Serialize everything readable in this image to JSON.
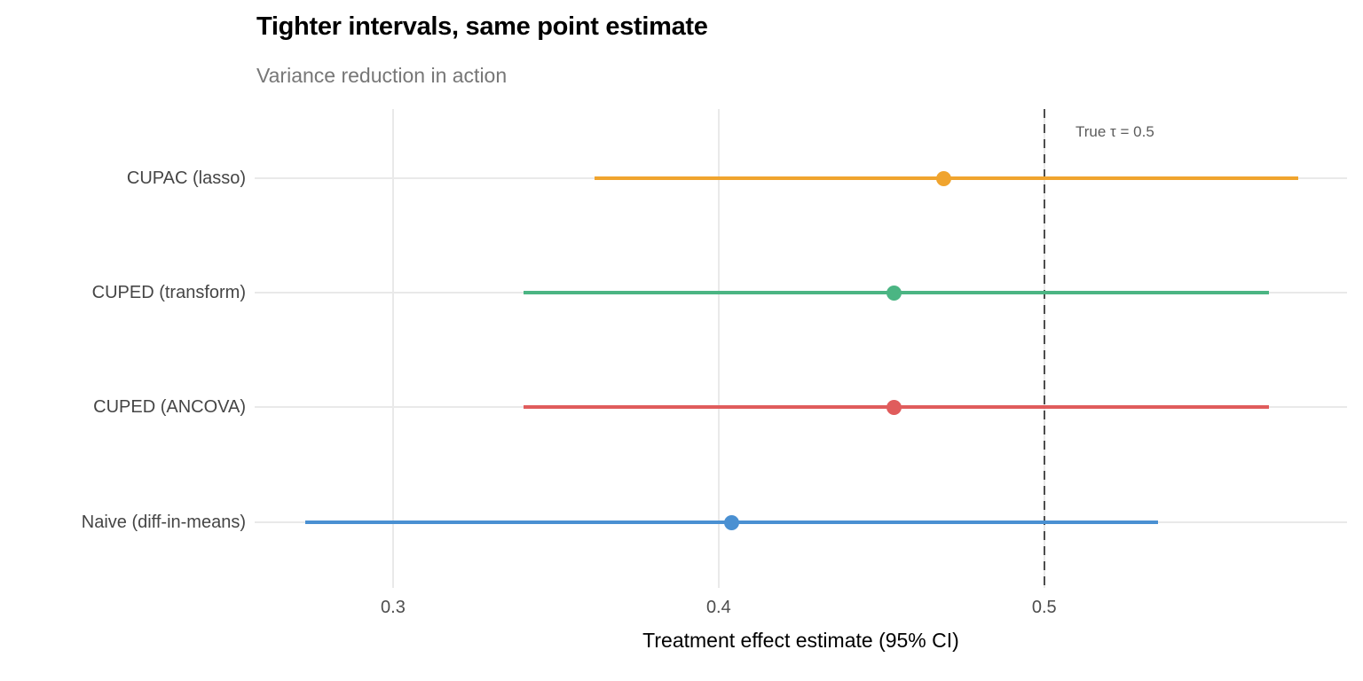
{
  "header": {
    "title": "Tighter intervals, same point estimate",
    "subtitle": "Variance reduction in action"
  },
  "chart_data": {
    "type": "scatter",
    "subtype": "horizontal-dot-ci-forest-plot",
    "title": "Tighter intervals, same point estimate",
    "subtitle": "Variance reduction in action",
    "xlabel": "Treatment effect estimate (95% CI)",
    "ylabel": "",
    "categories": [
      "CUPAC (lasso)",
      "CUPED (transform)",
      "CUPED (ANCOVA)",
      "Naive (diff-in-means)"
    ],
    "series": [
      {
        "name": "CUPAC (lasso)",
        "estimate": 0.469,
        "ci_low": 0.362,
        "ci_high": 0.578,
        "color": "#F0A42E"
      },
      {
        "name": "CUPED (transform)",
        "estimate": 0.454,
        "ci_low": 0.34,
        "ci_high": 0.569,
        "color": "#4BB583"
      },
      {
        "name": "CUPED (ANCOVA)",
        "estimate": 0.454,
        "ci_low": 0.34,
        "ci_high": 0.569,
        "color": "#E05C5C"
      },
      {
        "name": "Naive (diff-in-means)",
        "estimate": 0.404,
        "ci_low": 0.273,
        "ci_high": 0.535,
        "color": "#4A90D2"
      }
    ],
    "x_ticks": [
      0.3,
      0.4,
      0.5
    ],
    "x_tick_labels": [
      "0.3",
      "0.4",
      "0.5"
    ],
    "xlim": [
      0.2575,
      0.593
    ],
    "reference_line": {
      "x": 0.5,
      "label": "True τ = 0.5",
      "style": "dashed",
      "color": "#4D4D4D"
    },
    "grid": "major-only",
    "legend_position": "none"
  },
  "colors": {
    "background": "#FFFFFF",
    "grid": "#E9E9E9",
    "title": "#000000",
    "subtitle": "#777777",
    "axis_text": "#4D4D4D",
    "y_axis_text": "#454545",
    "annotation": "#5C5C5C"
  }
}
